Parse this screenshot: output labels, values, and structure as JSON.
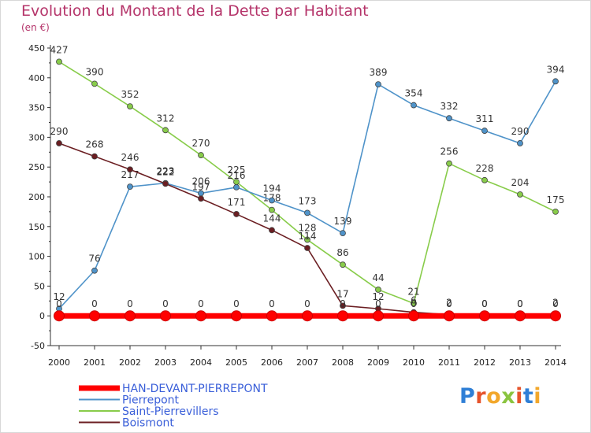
{
  "title": "Evolution du Montant de la Dette par Habitant",
  "subtitle": "(en €)",
  "logo": {
    "text": "Proxiti",
    "colors": [
      "#2f7fd6",
      "#e6532b",
      "#f2a72b",
      "#8ac43f",
      "#e6532b",
      "#2f7fd6",
      "#f2a72b"
    ]
  },
  "chart_data": {
    "type": "line",
    "x": [
      2000,
      2001,
      2002,
      2003,
      2004,
      2005,
      2006,
      2007,
      2008,
      2009,
      2010,
      2011,
      2012,
      2013,
      2014
    ],
    "ylim": [
      -50,
      450
    ],
    "yticks": [
      -50,
      0,
      50,
      100,
      150,
      200,
      250,
      300,
      350,
      400,
      450
    ],
    "grid": false,
    "legend_position": "bottom-left",
    "series": [
      {
        "name": "Saint-Pierrevillers",
        "color": "#88cc4a",
        "values": [
          427,
          390,
          352,
          312,
          270,
          225,
          178,
          128,
          86,
          44,
          21,
          256,
          228,
          204,
          175
        ]
      },
      {
        "name": "Pierrepont",
        "color": "#4f93c9",
        "values": [
          12,
          76,
          217,
          223,
          206,
          216,
          194,
          173,
          139,
          389,
          354,
          332,
          311,
          290,
          394
        ]
      },
      {
        "name": "Boismont",
        "color": "#6b1e22",
        "values": [
          290,
          268,
          246,
          222,
          197,
          171,
          144,
          114,
          17,
          12,
          6,
          2,
          0,
          0,
          2
        ]
      },
      {
        "name": "HAN-DEVANT-PIERREPONT",
        "color": "#ff0000",
        "values": [
          0,
          0,
          0,
          0,
          0,
          0,
          0,
          0,
          0,
          0,
          0,
          0,
          0,
          0,
          0
        ]
      }
    ],
    "legend": [
      {
        "name": "HAN-DEVANT-PIERREPONT",
        "color": "#ff0000",
        "text_color": "#3a5fd9"
      },
      {
        "name": "Pierrepont",
        "color": "#4f93c9",
        "text_color": "#3a5fd9"
      },
      {
        "name": "Saint-Pierrevillers",
        "color": "#88cc4a",
        "text_color": "#3a5fd9"
      },
      {
        "name": "Boismont",
        "color": "#6b1e22",
        "text_color": "#3a5fd9"
      }
    ]
  }
}
